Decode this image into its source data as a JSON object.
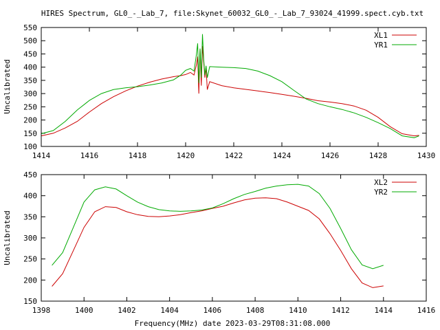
{
  "title": "HIRES Spectrum, GL0_-_Lab_7, file:Skynet_60032_GL0_-_Lab_7_93024_41999.spect.cyb.txt",
  "xlabel": "Frequency(MHz) date 2023-03-29T08:31:08.000",
  "colors": {
    "red": "#cc0000",
    "green": "#00aa00",
    "frame": "#000000"
  },
  "chart_data": [
    {
      "type": "line",
      "ylabel": "Uncalibrated",
      "xlim": [
        1414,
        1430
      ],
      "ylim": [
        100,
        550
      ],
      "xticks": [
        1414,
        1416,
        1418,
        1420,
        1422,
        1424,
        1426,
        1428,
        1430
      ],
      "yticks": [
        100,
        150,
        200,
        250,
        300,
        350,
        400,
        450,
        500,
        550
      ],
      "legend": "top-right",
      "series": [
        {
          "name": "XL1",
          "color": "#cc0000",
          "points": [
            [
              1414.0,
              140
            ],
            [
              1414.5,
              150
            ],
            [
              1415.0,
              170
            ],
            [
              1415.5,
              195
            ],
            [
              1416.0,
              230
            ],
            [
              1416.5,
              262
            ],
            [
              1417.0,
              288
            ],
            [
              1417.5,
              310
            ],
            [
              1418.0,
              328
            ],
            [
              1418.5,
              343
            ],
            [
              1419.0,
              355
            ],
            [
              1419.5,
              364
            ],
            [
              1419.8,
              368
            ],
            [
              1420.0,
              372
            ],
            [
              1420.2,
              380
            ],
            [
              1420.35,
              370
            ],
            [
              1420.45,
              410
            ],
            [
              1420.5,
              440
            ],
            [
              1420.55,
              300
            ],
            [
              1420.6,
              470
            ],
            [
              1420.65,
              330
            ],
            [
              1420.7,
              480
            ],
            [
              1420.75,
              420
            ],
            [
              1420.8,
              360
            ],
            [
              1420.85,
              400
            ],
            [
              1420.9,
              315
            ],
            [
              1421.0,
              345
            ],
            [
              1421.5,
              330
            ],
            [
              1422.0,
              322
            ],
            [
              1422.5,
              316
            ],
            [
              1423.0,
              310
            ],
            [
              1423.5,
              304
            ],
            [
              1424.0,
              297
            ],
            [
              1424.5,
              290
            ],
            [
              1425.0,
              282
            ],
            [
              1425.5,
              273
            ],
            [
              1426.0,
              268
            ],
            [
              1426.5,
              262
            ],
            [
              1427.0,
              253
            ],
            [
              1427.5,
              237
            ],
            [
              1428.0,
              210
            ],
            [
              1428.5,
              175
            ],
            [
              1429.0,
              148
            ],
            [
              1429.5,
              140
            ],
            [
              1429.7,
              142
            ]
          ]
        },
        {
          "name": "YR1",
          "color": "#00aa00",
          "points": [
            [
              1414.0,
              148
            ],
            [
              1414.5,
              160
            ],
            [
              1415.0,
              195
            ],
            [
              1415.5,
              238
            ],
            [
              1416.0,
              274
            ],
            [
              1416.5,
              300
            ],
            [
              1417.0,
              315
            ],
            [
              1417.5,
              322
            ],
            [
              1418.0,
              326
            ],
            [
              1418.5,
              332
            ],
            [
              1419.0,
              340
            ],
            [
              1419.5,
              352
            ],
            [
              1419.8,
              370
            ],
            [
              1420.0,
              388
            ],
            [
              1420.2,
              395
            ],
            [
              1420.35,
              385
            ],
            [
              1420.45,
              450
            ],
            [
              1420.5,
              490
            ],
            [
              1420.55,
              340
            ],
            [
              1420.6,
              470
            ],
            [
              1420.65,
              360
            ],
            [
              1420.7,
              525
            ],
            [
              1420.75,
              430
            ],
            [
              1420.8,
              370
            ],
            [
              1420.85,
              405
            ],
            [
              1420.9,
              360
            ],
            [
              1421.0,
              402
            ],
            [
              1421.5,
              400
            ],
            [
              1422.0,
              398
            ],
            [
              1422.5,
              395
            ],
            [
              1423.0,
              385
            ],
            [
              1423.5,
              368
            ],
            [
              1424.0,
              345
            ],
            [
              1424.5,
              312
            ],
            [
              1425.0,
              280
            ],
            [
              1425.5,
              262
            ],
            [
              1426.0,
              250
            ],
            [
              1426.5,
              240
            ],
            [
              1427.0,
              227
            ],
            [
              1427.5,
              210
            ],
            [
              1428.0,
              190
            ],
            [
              1428.5,
              168
            ],
            [
              1429.0,
              140
            ],
            [
              1429.5,
              133
            ],
            [
              1429.7,
              140
            ]
          ]
        }
      ]
    },
    {
      "type": "line",
      "ylabel": "Uncalibrated",
      "xlim": [
        1398,
        1416
      ],
      "ylim": [
        150,
        450
      ],
      "xticks": [
        1398,
        1400,
        1402,
        1404,
        1406,
        1408,
        1410,
        1412,
        1414,
        1416
      ],
      "yticks": [
        150,
        200,
        250,
        300,
        350,
        400,
        450
      ],
      "legend": "top-right",
      "series": [
        {
          "name": "XL2",
          "color": "#cc0000",
          "points": [
            [
              1398.5,
              185
            ],
            [
              1399.0,
              215
            ],
            [
              1399.5,
              270
            ],
            [
              1400.0,
              325
            ],
            [
              1400.5,
              362
            ],
            [
              1401.0,
              374
            ],
            [
              1401.5,
              372
            ],
            [
              1402.0,
              362
            ],
            [
              1402.5,
              355
            ],
            [
              1403.0,
              351
            ],
            [
              1403.5,
              350
            ],
            [
              1404.0,
              352
            ],
            [
              1404.5,
              355
            ],
            [
              1405.0,
              360
            ],
            [
              1405.5,
              364
            ],
            [
              1406.0,
              370
            ],
            [
              1406.5,
              375
            ],
            [
              1407.0,
              383
            ],
            [
              1407.5,
              390
            ],
            [
              1408.0,
              394
            ],
            [
              1408.5,
              395
            ],
            [
              1409.0,
              393
            ],
            [
              1409.5,
              385
            ],
            [
              1410.0,
              375
            ],
            [
              1410.5,
              365
            ],
            [
              1411.0,
              345
            ],
            [
              1411.5,
              310
            ],
            [
              1412.0,
              270
            ],
            [
              1412.5,
              227
            ],
            [
              1413.0,
              193
            ],
            [
              1413.5,
              182
            ],
            [
              1414.0,
              186
            ]
          ]
        },
        {
          "name": "YR2",
          "color": "#00aa00",
          "points": [
            [
              1398.5,
              235
            ],
            [
              1399.0,
              265
            ],
            [
              1399.5,
              325
            ],
            [
              1400.0,
              385
            ],
            [
              1400.5,
              414
            ],
            [
              1401.0,
              421
            ],
            [
              1401.5,
              416
            ],
            [
              1402.0,
              400
            ],
            [
              1402.5,
              385
            ],
            [
              1403.0,
              374
            ],
            [
              1403.5,
              367
            ],
            [
              1404.0,
              364
            ],
            [
              1404.5,
              363
            ],
            [
              1405.0,
              364
            ],
            [
              1405.5,
              366
            ],
            [
              1406.0,
              371
            ],
            [
              1406.5,
              381
            ],
            [
              1407.0,
              393
            ],
            [
              1407.5,
              403
            ],
            [
              1408.0,
              410
            ],
            [
              1408.5,
              418
            ],
            [
              1409.0,
              423
            ],
            [
              1409.5,
              426
            ],
            [
              1410.0,
              427
            ],
            [
              1410.5,
              423
            ],
            [
              1411.0,
              405
            ],
            [
              1411.5,
              370
            ],
            [
              1412.0,
              322
            ],
            [
              1412.5,
              272
            ],
            [
              1413.0,
              236
            ],
            [
              1413.5,
              227
            ],
            [
              1414.0,
              235
            ]
          ]
        }
      ]
    }
  ]
}
